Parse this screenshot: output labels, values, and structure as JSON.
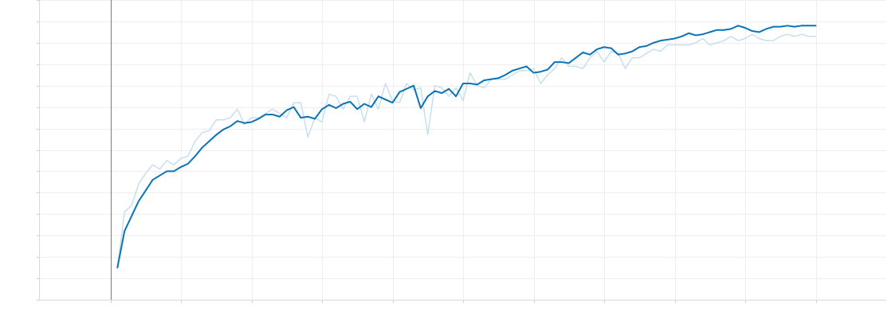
{
  "chart_data": {
    "type": "line",
    "title": "",
    "xlabel": "",
    "ylabel": "",
    "grid": true,
    "xlim": [
      -10,
      110
    ],
    "ylim": [
      0,
      14
    ],
    "x_gridlines": [
      0,
      10,
      20,
      30,
      40,
      50,
      60,
      70,
      80,
      90,
      100
    ],
    "y_gridlines": [
      0,
      1,
      2,
      3,
      4,
      5,
      6,
      7,
      8,
      9,
      10,
      11,
      12,
      13,
      14
    ],
    "reference_line_x": 0,
    "colors": {
      "raw": "#c6dff0",
      "smoothed": "#0a73b7"
    },
    "series": [
      {
        "values": [
          [
            1,
            1.5
          ],
          [
            2,
            4.1
          ],
          [
            3,
            4.4
          ],
          [
            4,
            5.4
          ],
          [
            5,
            5.9
          ],
          [
            6,
            6.3
          ],
          [
            7,
            6.1
          ],
          [
            8,
            6.5
          ],
          [
            9,
            6.3
          ],
          [
            10,
            6.6
          ],
          [
            11,
            6.7
          ],
          [
            12,
            7.4
          ],
          [
            13,
            7.8
          ],
          [
            14,
            7.9
          ],
          [
            15,
            8.4
          ],
          [
            16,
            8.4
          ],
          [
            17,
            8.5
          ],
          [
            18,
            8.9
          ],
          [
            19,
            8.2
          ],
          [
            20,
            8.5
          ],
          [
            21,
            8.5
          ],
          [
            22,
            8.7
          ],
          [
            23,
            8.9
          ],
          [
            24,
            8.7
          ],
          [
            25,
            8.5
          ],
          [
            26,
            9.2
          ],
          [
            27,
            9.2
          ],
          [
            28,
            7.6
          ],
          [
            29,
            8.5
          ],
          [
            30,
            8.3
          ],
          [
            31,
            9.6
          ],
          [
            32,
            9.5
          ],
          [
            33,
            8.9
          ],
          [
            34,
            9.5
          ],
          [
            35,
            9.5
          ],
          [
            36,
            8.3
          ],
          [
            37,
            9.6
          ],
          [
            38,
            8.9
          ],
          [
            39,
            10.1
          ],
          [
            40,
            9.3
          ],
          [
            41,
            9.2
          ],
          [
            42,
            10.1
          ],
          [
            43,
            9.8
          ],
          [
            44,
            9.9
          ],
          [
            45,
            7.7
          ],
          [
            46,
            10.0
          ],
          [
            47,
            9.9
          ],
          [
            48,
            9.5
          ],
          [
            49,
            9.9
          ],
          [
            50,
            9.3
          ],
          [
            51,
            10.6
          ],
          [
            52,
            10.0
          ],
          [
            53,
            9.9
          ],
          [
            54,
            10.3
          ],
          [
            55,
            10.3
          ],
          [
            56,
            10.3
          ],
          [
            57,
            10.5
          ],
          [
            58,
            10.7
          ],
          [
            59,
            10.7
          ],
          [
            60,
            10.8
          ],
          [
            61,
            10.1
          ],
          [
            62,
            10.5
          ],
          [
            63,
            10.8
          ],
          [
            64,
            11.3
          ],
          [
            65,
            10.9
          ],
          [
            66,
            10.9
          ],
          [
            67,
            10.8
          ],
          [
            68,
            11.3
          ],
          [
            69,
            11.6
          ],
          [
            70,
            11.1
          ],
          [
            71,
            11.6
          ],
          [
            72,
            11.5
          ],
          [
            73,
            10.8
          ],
          [
            74,
            11.3
          ],
          [
            75,
            11.3
          ],
          [
            76,
            11.5
          ],
          [
            77,
            11.7
          ],
          [
            78,
            11.6
          ],
          [
            79,
            11.9
          ],
          [
            80,
            11.9
          ],
          [
            81,
            11.9
          ],
          [
            82,
            11.9
          ],
          [
            83,
            12.0
          ],
          [
            84,
            12.2
          ],
          [
            85,
            11.9
          ],
          [
            86,
            12.0
          ],
          [
            87,
            12.1
          ],
          [
            88,
            12.3
          ],
          [
            89,
            12.1
          ],
          [
            90,
            12.2
          ],
          [
            91,
            12.4
          ],
          [
            92,
            12.2
          ],
          [
            93,
            12.1
          ],
          [
            94,
            12.1
          ],
          [
            95,
            12.3
          ],
          [
            96,
            12.4
          ],
          [
            97,
            12.3
          ],
          [
            98,
            12.4
          ],
          [
            99,
            12.3
          ],
          [
            100,
            12.3
          ]
        ]
      },
      {
        "values": [
          [
            1,
            1.5
          ],
          [
            2,
            3.2
          ],
          [
            3,
            3.9
          ],
          [
            4,
            4.6
          ],
          [
            5,
            5.1
          ],
          [
            6,
            5.6
          ],
          [
            7,
            5.8
          ],
          [
            8,
            6.0
          ],
          [
            9,
            6.0
          ],
          [
            10,
            6.2
          ],
          [
            11,
            6.35
          ],
          [
            12,
            6.7
          ],
          [
            13,
            7.1
          ],
          [
            14,
            7.4
          ],
          [
            15,
            7.7
          ],
          [
            16,
            7.95
          ],
          [
            17,
            8.1
          ],
          [
            18,
            8.35
          ],
          [
            19,
            8.25
          ],
          [
            20,
            8.3
          ],
          [
            21,
            8.45
          ],
          [
            22,
            8.65
          ],
          [
            23,
            8.65
          ],
          [
            24,
            8.55
          ],
          [
            25,
            8.85
          ],
          [
            26,
            9.0
          ],
          [
            27,
            8.5
          ],
          [
            28,
            8.55
          ],
          [
            29,
            8.45
          ],
          [
            30,
            8.9
          ],
          [
            31,
            9.1
          ],
          [
            32,
            8.95
          ],
          [
            33,
            9.15
          ],
          [
            34,
            9.25
          ],
          [
            35,
            8.9
          ],
          [
            36,
            9.15
          ],
          [
            37,
            9.0
          ],
          [
            38,
            9.5
          ],
          [
            39,
            9.35
          ],
          [
            40,
            9.2
          ],
          [
            41,
            9.7
          ],
          [
            42,
            9.85
          ],
          [
            43,
            10.0
          ],
          [
            44,
            8.95
          ],
          [
            45,
            9.5
          ],
          [
            46,
            9.75
          ],
          [
            47,
            9.65
          ],
          [
            48,
            9.85
          ],
          [
            49,
            9.5
          ],
          [
            50,
            10.1
          ],
          [
            51,
            10.1
          ],
          [
            52,
            10.05
          ],
          [
            53,
            10.25
          ],
          [
            54,
            10.3
          ],
          [
            55,
            10.35
          ],
          [
            56,
            10.5
          ],
          [
            57,
            10.7
          ],
          [
            58,
            10.8
          ],
          [
            59,
            10.9
          ],
          [
            60,
            10.6
          ],
          [
            61,
            10.65
          ],
          [
            62,
            10.75
          ],
          [
            63,
            11.1
          ],
          [
            64,
            11.1
          ],
          [
            65,
            11.05
          ],
          [
            66,
            11.3
          ],
          [
            67,
            11.55
          ],
          [
            68,
            11.45
          ],
          [
            69,
            11.7
          ],
          [
            70,
            11.8
          ],
          [
            71,
            11.75
          ],
          [
            72,
            11.45
          ],
          [
            73,
            11.5
          ],
          [
            74,
            11.6
          ],
          [
            75,
            11.8
          ],
          [
            76,
            11.85
          ],
          [
            77,
            12.0
          ],
          [
            78,
            12.1
          ],
          [
            79,
            12.15
          ],
          [
            80,
            12.2
          ],
          [
            81,
            12.3
          ],
          [
            82,
            12.45
          ],
          [
            83,
            12.35
          ],
          [
            84,
            12.4
          ],
          [
            85,
            12.5
          ],
          [
            86,
            12.6
          ],
          [
            87,
            12.6
          ],
          [
            88,
            12.65
          ],
          [
            89,
            12.8
          ],
          [
            90,
            12.7
          ],
          [
            91,
            12.55
          ],
          [
            92,
            12.5
          ],
          [
            93,
            12.65
          ],
          [
            94,
            12.75
          ],
          [
            95,
            12.75
          ],
          [
            96,
            12.8
          ],
          [
            97,
            12.75
          ],
          [
            98,
            12.8
          ],
          [
            99,
            12.8
          ],
          [
            100,
            12.8
          ]
        ]
      }
    ]
  }
}
